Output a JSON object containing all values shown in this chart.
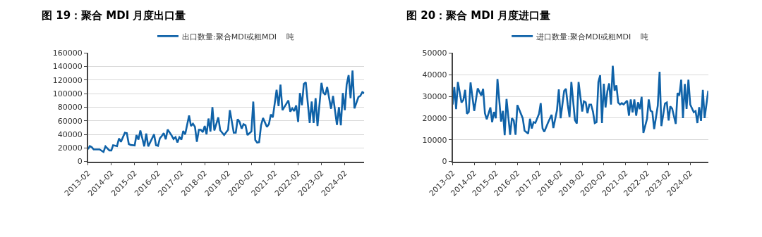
{
  "chart_data": [
    {
      "type": "line",
      "title": "图 19：聚合 MDI 月度出口量",
      "legend": "top",
      "grid": "y",
      "line_style": "solid",
      "marker": "none",
      "xlim": [
        "2013-02",
        "2024-12"
      ],
      "xticks": [
        "2013-02",
        "2014-02",
        "2015-02",
        "2016-02",
        "2017-02",
        "2018-02",
        "2019-02",
        "2020-02",
        "2021-02",
        "2022-02",
        "2023-02",
        "2024-02"
      ],
      "ylim": [
        0,
        160000
      ],
      "yticks": [
        0,
        20000,
        40000,
        60000,
        80000,
        100000,
        120000,
        140000,
        160000
      ],
      "series": [
        {
          "name": "出口数量:聚合MDI或粗MDI    吨",
          "color": "#0f62a8",
          "x": [
            "2013-02",
            "2013-03",
            "2013-04",
            "2013-05",
            "2013-08",
            "2013-10",
            "2013-11",
            "2014-01",
            "2014-02",
            "2014-03",
            "2014-05",
            "2014-06",
            "2014-07",
            "2014-09",
            "2014-10",
            "2014-11",
            "2014-12",
            "2015-02",
            "2015-03",
            "2015-04",
            "2015-05",
            "2015-07",
            "2015-08",
            "2015-09",
            "2015-12",
            "2016-01",
            "2016-02",
            "2016-03",
            "2016-04",
            "2016-05",
            "2016-06",
            "2016-07",
            "2016-09",
            "2016-10",
            "2016-11",
            "2016-12",
            "2017-01",
            "2017-02",
            "2017-03",
            "2017-04",
            "2017-06",
            "2017-07",
            "2017-08",
            "2017-09",
            "2017-10",
            "2017-11",
            "2017-12",
            "2018-01",
            "2018-02",
            "2018-03",
            "2018-04",
            "2018-05",
            "2018-06",
            "2018-07",
            "2018-09",
            "2018-10",
            "2018-12",
            "2019-02",
            "2019-03",
            "2019-05",
            "2019-06",
            "2019-07",
            "2019-08",
            "2019-09",
            "2019-10",
            "2019-11",
            "2019-12",
            "2020-02",
            "2020-03",
            "2020-04",
            "2020-05",
            "2020-06",
            "2020-07",
            "2020-08",
            "2020-10",
            "2020-11",
            "2020-12",
            "2021-01",
            "2021-03",
            "2021-04",
            "2021-05",
            "2021-06",
            "2021-09",
            "2021-10",
            "2021-11",
            "2021-12",
            "2022-01",
            "2022-02",
            "2022-03",
            "2022-04",
            "2022-05",
            "2022-06",
            "2022-08",
            "2022-09",
            "2022-10",
            "2022-11",
            "2022-12",
            "2023-02",
            "2023-03",
            "2023-04",
            "2023-05",
            "2023-07",
            "2023-08",
            "2023-10",
            "2023-11",
            "2023-12",
            "2024-01",
            "2024-02",
            "2024-03",
            "2024-04",
            "2024-05",
            "2024-06",
            "2024-07",
            "2024-09",
            "2024-10",
            "2024-11",
            "2024-12"
          ],
          "values": [
            18000,
            22700,
            21000,
            17700,
            17700,
            14000,
            22300,
            16300,
            16300,
            24000,
            22700,
            34000,
            29000,
            42300,
            41700,
            25700,
            24300,
            23700,
            39000,
            32300,
            45700,
            22300,
            41000,
            22300,
            40000,
            24000,
            23000,
            34000,
            37700,
            41700,
            32700,
            47000,
            38300,
            33000,
            35700,
            28000,
            35700,
            32300,
            45000,
            40000,
            67700,
            52300,
            55700,
            51000,
            29000,
            46700,
            46700,
            43300,
            52300,
            40000,
            63300,
            44000,
            80000,
            45700,
            65000,
            46000,
            39000,
            46700,
            75700,
            42300,
            42300,
            62300,
            58300,
            48300,
            55000,
            53300,
            39000,
            44300,
            88300,
            31700,
            27700,
            28300,
            53300,
            64000,
            51000,
            55000,
            69300,
            65000,
            105700,
            81700,
            113300,
            75700,
            90000,
            73300,
            78300,
            74300,
            82700,
            58300,
            101000,
            83000,
            114300,
            116700,
            56700,
            88300,
            56700,
            93300,
            52300,
            116000,
            101700,
            98300,
            109700,
            77700,
            96700,
            54000,
            80000,
            53300,
            101000,
            75700,
            113300,
            127300,
            93300,
            134000,
            78300,
            95000,
            96700,
            102300,
            100700
          ]
        }
      ]
    },
    {
      "type": "line",
      "title": "图 20：聚合 MDI 月度进口量",
      "legend": "top",
      "grid": "y",
      "line_style": "solid",
      "marker": "none",
      "xlim": [
        "2013-02",
        "2024-12"
      ],
      "xticks": [
        "2013-02",
        "2014-02",
        "2015-02",
        "2016-02",
        "2017-02",
        "2018-02",
        "2019-02",
        "2020-02",
        "2021-02",
        "2022-02",
        "2023-02",
        "2024-02"
      ],
      "ylim": [
        0,
        50000
      ],
      "yticks": [
        0,
        10000,
        20000,
        30000,
        40000,
        50000
      ],
      "series": [
        {
          "name": "进口数量:聚合MDI或粗MDI    吨",
          "color": "#0f62a8",
          "x": [
            "2013-02",
            "2013-03",
            "2013-04",
            "2013-05",
            "2013-07",
            "2013-08",
            "2013-09",
            "2013-10",
            "2013-11",
            "2013-12",
            "2014-02",
            "2014-04",
            "2014-06",
            "2014-07",
            "2014-08",
            "2014-09",
            "2014-11",
            "2014-12",
            "2015-01",
            "2015-02",
            "2015-03",
            "2015-05",
            "2015-06",
            "2015-07",
            "2015-08",
            "2015-10",
            "2015-11",
            "2015-12",
            "2016-01",
            "2016-02",
            "2016-05",
            "2016-06",
            "2016-08",
            "2016-09",
            "2016-10",
            "2016-11",
            "2016-12",
            "2017-02",
            "2017-03",
            "2017-04",
            "2017-05",
            "2017-07",
            "2017-09",
            "2017-10",
            "2017-12",
            "2018-01",
            "2018-02",
            "2018-04",
            "2018-05",
            "2018-06",
            "2018-07",
            "2018-08",
            "2018-10",
            "2018-11",
            "2018-12",
            "2019-02",
            "2019-03",
            "2019-04",
            "2019-05",
            "2019-06",
            "2019-07",
            "2019-08",
            "2019-09",
            "2019-10",
            "2019-11",
            "2019-12",
            "2020-01",
            "2020-02",
            "2020-03",
            "2020-04",
            "2020-05",
            "2020-06",
            "2020-07",
            "2020-08",
            "2020-09",
            "2020-10",
            "2020-11",
            "2020-12",
            "2021-01",
            "2021-03",
            "2021-04",
            "2021-05",
            "2021-06",
            "2021-07",
            "2021-08",
            "2021-09",
            "2021-10",
            "2021-11",
            "2021-12",
            "2022-02",
            "2022-03",
            "2022-04",
            "2022-05",
            "2022-06",
            "2022-08",
            "2022-09",
            "2022-10",
            "2022-12",
            "2023-01",
            "2023-02",
            "2023-03",
            "2023-04",
            "2023-06",
            "2023-07",
            "2023-08",
            "2023-09",
            "2023-10",
            "2023-11",
            "2023-12",
            "2024-01",
            "2024-02",
            "2024-04",
            "2024-05",
            "2024-06",
            "2024-07",
            "2024-08",
            "2024-09",
            "2024-10",
            "2024-12"
          ],
          "values": [
            26200,
            34300,
            24100,
            36600,
            27200,
            28300,
            33000,
            22000,
            22800,
            36400,
            23300,
            33700,
            30400,
            33500,
            22200,
            19400,
            24900,
            18100,
            22800,
            19900,
            38000,
            18400,
            23300,
            12100,
            28800,
            12300,
            19900,
            18900,
            12300,
            26000,
            19900,
            14200,
            12800,
            19700,
            15200,
            18100,
            17800,
            22000,
            26900,
            15200,
            13700,
            17800,
            21500,
            15400,
            23600,
            33200,
            19900,
            32500,
            33500,
            26200,
            20500,
            36600,
            19000,
            17500,
            36600,
            23000,
            27700,
            27200,
            22200,
            26200,
            26200,
            23000,
            17700,
            18100,
            36600,
            39700,
            17700,
            35800,
            24900,
            32400,
            36000,
            26200,
            44100,
            32600,
            35100,
            27100,
            26300,
            26900,
            26300,
            28000,
            21100,
            28600,
            22600,
            28600,
            21100,
            27300,
            24100,
            29800,
            13200,
            19700,
            28600,
            23400,
            22900,
            14900,
            25700,
            41300,
            16300,
            26700,
            27200,
            18900,
            25400,
            24400,
            17300,
            31500,
            30400,
            37700,
            20000,
            35700,
            24200,
            37700,
            26200,
            22700,
            23200,
            17700,
            25000,
            18700,
            33000,
            20000,
            32600
          ]
        }
      ]
    }
  ]
}
